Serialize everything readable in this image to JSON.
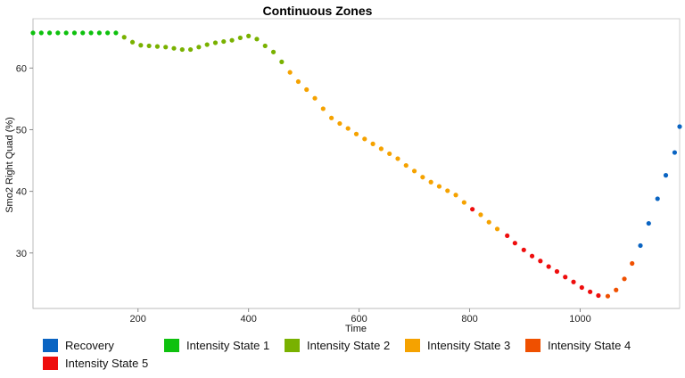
{
  "chart_data": {
    "type": "scatter",
    "title": "Continuous Zones",
    "xlabel": "Time",
    "ylabel": "Smo2 Right Quad (%)",
    "xlim": [
      10,
      1180
    ],
    "ylim": [
      21,
      68
    ],
    "x_ticks": [
      200,
      400,
      600,
      800,
      1000
    ],
    "y_ticks": [
      30,
      40,
      50,
      60
    ],
    "grid": false,
    "legend_position": "bottom",
    "colors": {
      "Recovery": "#0a64c2",
      "Intensity State 1": "#0ec10e",
      "Intensity State 2": "#79b100",
      "Intensity State 3": "#f5a200",
      "Intensity State 4": "#ef5000",
      "Intensity State 5": "#ee0d0d"
    },
    "series": [
      {
        "name": "Recovery",
        "x": [
          1109,
          1124,
          1140,
          1155,
          1171,
          1180
        ],
        "y": [
          31.2,
          34.8,
          38.8,
          42.6,
          46.3,
          50.5
        ]
      },
      {
        "name": "Intensity State 1",
        "x": [
          10,
          25,
          40,
          55,
          70,
          85,
          100,
          115,
          130,
          145,
          160
        ],
        "y": [
          65.7,
          65.7,
          65.7,
          65.7,
          65.7,
          65.7,
          65.7,
          65.7,
          65.7,
          65.7,
          65.7
        ]
      },
      {
        "name": "Intensity State 2",
        "x": [
          175,
          190,
          205,
          220,
          235,
          250,
          265,
          280,
          295,
          310,
          325,
          340,
          355,
          370,
          385,
          400,
          415,
          430,
          445,
          460
        ],
        "y": [
          65.0,
          64.2,
          63.7,
          63.6,
          63.5,
          63.4,
          63.2,
          63.0,
          63.0,
          63.4,
          63.8,
          64.1,
          64.3,
          64.5,
          64.9,
          65.2,
          64.7,
          63.6,
          62.6,
          61.0
        ]
      },
      {
        "name": "Intensity State 3",
        "x": [
          475,
          490,
          505,
          520,
          535,
          550,
          565,
          580,
          595,
          610,
          625,
          640,
          655,
          670,
          685,
          700,
          715,
          730,
          745,
          760,
          775,
          790,
          820,
          835,
          850
        ],
        "y": [
          59.3,
          57.8,
          56.5,
          55.1,
          53.4,
          51.9,
          51.0,
          50.2,
          49.3,
          48.5,
          47.7,
          46.9,
          46.1,
          45.3,
          44.2,
          43.3,
          42.3,
          41.5,
          40.8,
          40.1,
          39.4,
          38.2,
          36.2,
          35.0,
          33.9
        ]
      },
      {
        "name": "Intensity State 4",
        "x": [
          1050,
          1065,
          1080,
          1094
        ],
        "y": [
          23.0,
          24.0,
          25.8,
          28.3
        ]
      },
      {
        "name": "Intensity State 5",
        "x": [
          805,
          868,
          882,
          898,
          913,
          928,
          943,
          958,
          973,
          988,
          1003,
          1018,
          1033
        ],
        "y": [
          37.1,
          32.8,
          31.6,
          30.5,
          29.5,
          28.7,
          27.8,
          27.0,
          26.1,
          25.3,
          24.4,
          23.7,
          23.1
        ]
      }
    ]
  }
}
